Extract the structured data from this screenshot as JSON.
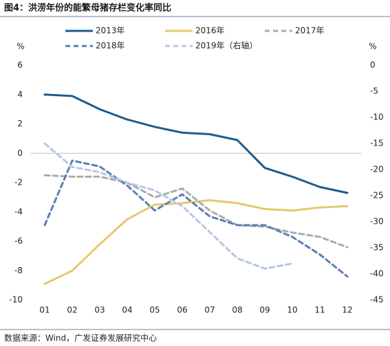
{
  "chart_data": {
    "type": "line",
    "title": "图4：洪涝年份的能繁母猪存栏变化率同比",
    "source": "数据来源：Wind，广发证券发展研究中心",
    "ylabel": "%",
    "y2label": "%",
    "categories": [
      "01",
      "02",
      "03",
      "04",
      "05",
      "06",
      "07",
      "08",
      "09",
      "10",
      "11",
      "12"
    ],
    "ylim": [
      -10,
      6
    ],
    "yticks": [
      -10,
      -8,
      -6,
      -4,
      -2,
      0,
      2,
      4,
      6
    ],
    "y2lim": [
      -45,
      0
    ],
    "y2ticks": [
      -45,
      -40,
      -35,
      -30,
      -25,
      -20,
      -15,
      -10,
      -5,
      0
    ],
    "series": [
      {
        "name": "2013年",
        "color": "#1f5c8b",
        "dash": false,
        "values": [
          4.0,
          3.9,
          3.0,
          2.3,
          1.8,
          1.4,
          1.3,
          0.9,
          -1.0,
          -1.6,
          -2.3,
          -2.7
        ]
      },
      {
        "name": "2016年",
        "color": "#e6c86e",
        "dash": false,
        "values": [
          -8.9,
          -8.0,
          -6.2,
          -4.5,
          -3.5,
          -3.4,
          -3.2,
          -3.4,
          -3.8,
          -3.9,
          -3.7,
          -3.6
        ]
      },
      {
        "name": "2017年",
        "color": "#aaaaaa",
        "dash": true,
        "values": [
          -1.5,
          -1.6,
          -1.6,
          -2.0,
          -3.0,
          -2.4,
          -3.9,
          -4.9,
          -5.0,
          -5.4,
          -5.7,
          -6.4
        ]
      },
      {
        "name": "2018年",
        "color": "#5b7fb0",
        "dash": true,
        "values": [
          -4.9,
          -0.5,
          -0.9,
          -2.2,
          -3.9,
          -2.8,
          -4.3,
          -4.9,
          -4.9,
          -5.7,
          -6.9,
          -8.4
        ]
      },
      {
        "name": "2019年（右轴）",
        "color": "#b4c7e7",
        "dash": true,
        "axis": "y2",
        "values": [
          -15,
          -19.5,
          -20.5,
          -22.5,
          -24,
          -27,
          -32,
          -37,
          -39,
          -38,
          null,
          null
        ]
      }
    ]
  }
}
